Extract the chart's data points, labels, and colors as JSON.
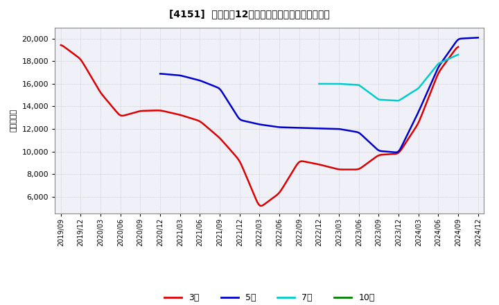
{
  "title": "[4151]  経常利益12か月移動合計の標準偏差の推移",
  "ylabel": "（百万円）",
  "background_color": "#ffffff",
  "plot_bg_color": "#f0f0f8",
  "grid_color": "#aaaaaa",
  "ylim": [
    4500,
    21000
  ],
  "yticks": [
    6000,
    8000,
    10000,
    12000,
    14000,
    16000,
    18000,
    20000
  ],
  "series": {
    "3年": {
      "color": "#dd0000",
      "x": [
        "2019/09",
        "2019/12",
        "2020/03",
        "2020/06",
        "2020/09",
        "2020/12",
        "2021/03",
        "2021/06",
        "2021/09",
        "2021/12",
        "2022/03",
        "2022/06",
        "2022/09",
        "2022/12",
        "2023/03",
        "2023/06",
        "2023/09",
        "2023/12",
        "2024/03",
        "2024/06",
        "2024/09"
      ],
      "y": [
        19500,
        18200,
        15200,
        13100,
        13600,
        13650,
        13250,
        12700,
        11200,
        9200,
        5000,
        6300,
        9200,
        8850,
        8400,
        8400,
        9700,
        9800,
        12500,
        17000,
        19400
      ]
    },
    "5年": {
      "color": "#0000cc",
      "x": [
        "2020/12",
        "2021/03",
        "2021/06",
        "2021/09",
        "2021/12",
        "2022/03",
        "2022/06",
        "2022/09",
        "2022/12",
        "2023/03",
        "2023/06",
        "2023/09",
        "2023/12",
        "2024/03",
        "2024/06",
        "2024/09",
        "2024/12"
      ],
      "y": [
        16900,
        16750,
        16300,
        15600,
        12800,
        12400,
        12150,
        12100,
        12050,
        12000,
        11700,
        10050,
        9900,
        13500,
        17500,
        20000,
        20100
      ]
    },
    "7年": {
      "color": "#00cccc",
      "x": [
        "2022/12",
        "2023/03",
        "2023/06",
        "2023/09",
        "2023/12",
        "2024/03",
        "2024/06",
        "2024/09"
      ],
      "y": [
        16000,
        16000,
        15900,
        14600,
        14500,
        15600,
        17800,
        18600
      ]
    },
    "10年": {
      "color": "#008000",
      "x": [],
      "y": []
    }
  },
  "legend_labels": [
    "3年",
    "5年",
    "7年",
    "10年"
  ],
  "legend_colors": [
    "#dd0000",
    "#0000cc",
    "#00cccc",
    "#008000"
  ],
  "xticks": [
    "2019/09",
    "2019/12",
    "2020/03",
    "2020/06",
    "2020/09",
    "2020/12",
    "2021/03",
    "2021/06",
    "2021/09",
    "2021/12",
    "2022/03",
    "2022/06",
    "2022/09",
    "2022/12",
    "2023/03",
    "2023/06",
    "2023/09",
    "2023/12",
    "2024/03",
    "2024/06",
    "2024/09",
    "2024/12"
  ]
}
